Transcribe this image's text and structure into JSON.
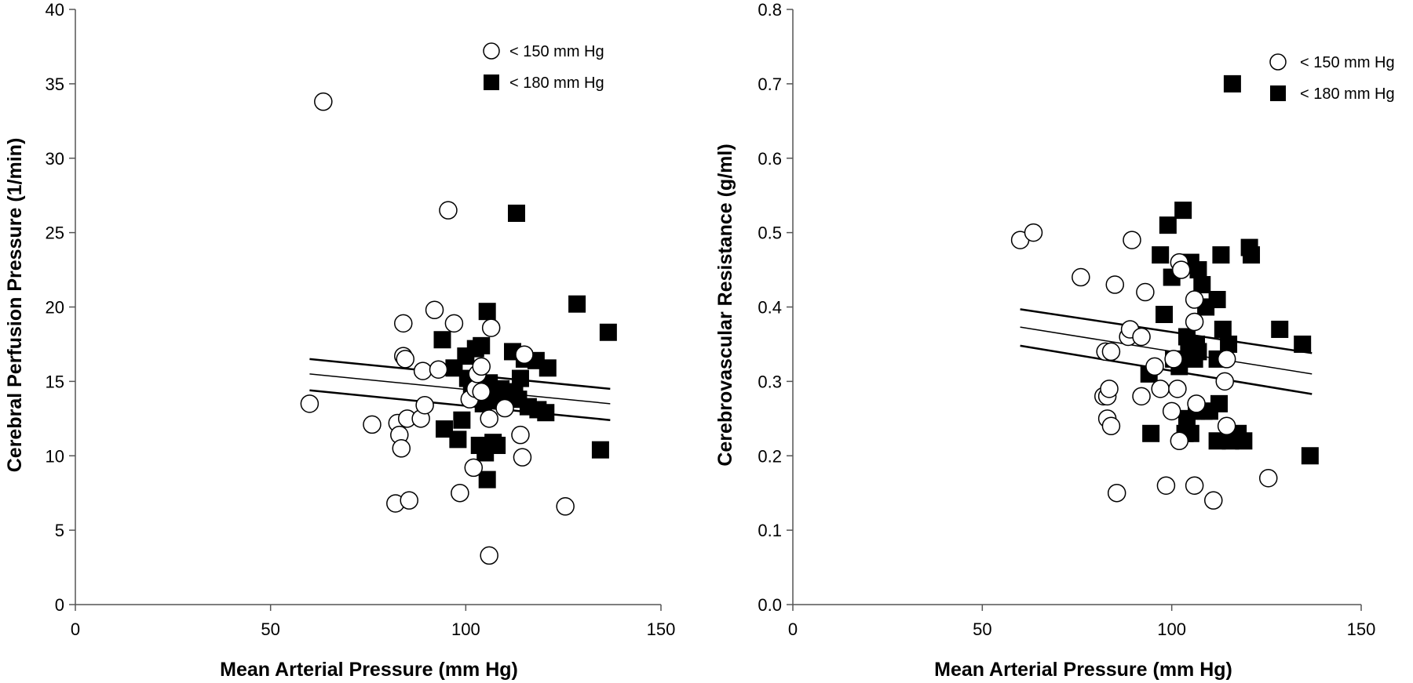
{
  "chart_data": [
    {
      "type": "scatter",
      "xlabel": "Mean Arterial Pressure (mm Hg)",
      "ylabel": "Cerebral Perfusion Pressure (1/min)",
      "xlim": [
        0,
        150
      ],
      "ylim": [
        0,
        40
      ],
      "xticks": [
        "0",
        "50",
        "100",
        "150"
      ],
      "yticks": [
        "0",
        "5",
        "10",
        "15",
        "20",
        "25",
        "30",
        "35",
        "40"
      ],
      "grid": false,
      "legend": "top-right",
      "series": [
        {
          "name": "< 150 mm Hg",
          "marker": "open-circle",
          "points": [
            [
              60,
              13.5
            ],
            [
              63.5,
              33.8
            ],
            [
              76,
              12.1
            ],
            [
              82,
              6.8
            ],
            [
              82.5,
              12.2
            ],
            [
              83,
              11.4
            ],
            [
              83.5,
              10.5
            ],
            [
              84,
              16.7
            ],
            [
              84,
              18.9
            ],
            [
              84.5,
              16.5
            ],
            [
              85,
              12.5
            ],
            [
              85.5,
              7
            ],
            [
              88.5,
              12.5
            ],
            [
              89,
              15.7
            ],
            [
              89.5,
              13.4
            ],
            [
              92,
              19.8
            ],
            [
              93,
              15.8
            ],
            [
              95.5,
              26.5
            ],
            [
              97,
              18.9
            ],
            [
              98.5,
              7.5
            ],
            [
              101,
              13.8
            ],
            [
              102,
              9.2
            ],
            [
              102.5,
              14.5
            ],
            [
              103,
              15.5
            ],
            [
              104,
              16
            ],
            [
              104,
              14.3
            ],
            [
              106,
              12.5
            ],
            [
              106,
              3.3
            ],
            [
              106.5,
              18.6
            ],
            [
              110,
              13.2
            ],
            [
              114,
              11.4
            ],
            [
              114.5,
              9.9
            ],
            [
              115,
              16.8
            ],
            [
              125.5,
              6.6
            ]
          ]
        },
        {
          "name": "< 180 mm Hg",
          "marker": "filled-square",
          "points": [
            [
              94,
              17.8
            ],
            [
              94.5,
              11.8
            ],
            [
              97,
              15.9
            ],
            [
              98,
              11.1
            ],
            [
              99,
              12.4
            ],
            [
              100,
              16.7
            ],
            [
              100.5,
              15.2
            ],
            [
              101.5,
              14.3
            ],
            [
              102.5,
              17.2
            ],
            [
              103,
              14.5
            ],
            [
              103.5,
              10.7
            ],
            [
              104,
              17.4
            ],
            [
              104.5,
              13.5
            ],
            [
              105,
              10.2
            ],
            [
              105.5,
              19.7
            ],
            [
              105.5,
              8.4
            ],
            [
              106,
              14.9
            ],
            [
              106.5,
              13.8
            ],
            [
              107,
              10.9
            ],
            [
              108,
              10.7
            ],
            [
              109,
              14.5
            ],
            [
              110,
              14.3
            ],
            [
              112,
              17
            ],
            [
              112.5,
              14.3
            ],
            [
              113,
              26.3
            ],
            [
              113.5,
              13.8
            ],
            [
              114,
              15.2
            ],
            [
              115,
              16.5
            ],
            [
              116,
              13.3
            ],
            [
              118,
              16.4
            ],
            [
              118.5,
              13.1
            ],
            [
              120.5,
              12.9
            ],
            [
              121,
              15.9
            ],
            [
              128.5,
              20.2
            ],
            [
              134.5,
              10.4
            ],
            [
              136.5,
              18.3
            ]
          ]
        }
      ],
      "fit_lines": [
        {
          "x": [
            60,
            137
          ],
          "y": [
            16.5,
            14.5
          ]
        },
        {
          "x": [
            60,
            137
          ],
          "y": [
            15.5,
            13.5
          ]
        },
        {
          "x": [
            60,
            137
          ],
          "y": [
            14.4,
            12.4
          ]
        }
      ]
    },
    {
      "type": "scatter",
      "xlabel": "Mean Arterial Pressure (mm Hg)",
      "ylabel": "Cerebrovascular Resistance (g/ml)",
      "xlim": [
        0,
        150
      ],
      "ylim": [
        0,
        0.8
      ],
      "xticks": [
        "0",
        "50",
        "100",
        "150"
      ],
      "yticks": [
        "0.0",
        "0.1",
        "0.2",
        "0.3",
        "0.4",
        "0.5",
        "0.6",
        "0.7",
        "0.8"
      ],
      "grid": false,
      "legend": "top-right",
      "series": [
        {
          "name": "< 150 mm Hg",
          "marker": "open-circle",
          "points": [
            [
              60,
              0.49
            ],
            [
              63.5,
              0.5
            ],
            [
              76,
              0.44
            ],
            [
              82,
              0.28
            ],
            [
              82.5,
              0.34
            ],
            [
              83,
              0.28
            ],
            [
              83,
              0.25
            ],
            [
              83.5,
              0.29
            ],
            [
              84,
              0.24
            ],
            [
              84,
              0.34
            ],
            [
              85,
              0.43
            ],
            [
              85.5,
              0.15
            ],
            [
              88.5,
              0.36
            ],
            [
              89,
              0.37
            ],
            [
              89.5,
              0.49
            ],
            [
              92,
              0.36
            ],
            [
              92,
              0.28
            ],
            [
              93,
              0.42
            ],
            [
              95.5,
              0.32
            ],
            [
              97,
              0.29
            ],
            [
              98.5,
              0.16
            ],
            [
              100,
              0.26
            ],
            [
              100.5,
              0.33
            ],
            [
              101.5,
              0.29
            ],
            [
              102,
              0.22
            ],
            [
              102,
              0.46
            ],
            [
              102.5,
              0.45
            ],
            [
              106,
              0.38
            ],
            [
              106,
              0.41
            ],
            [
              106,
              0.16
            ],
            [
              106.5,
              0.27
            ],
            [
              111,
              0.14
            ],
            [
              114,
              0.3
            ],
            [
              114.5,
              0.33
            ],
            [
              114.5,
              0.24
            ],
            [
              125.5,
              0.17
            ]
          ]
        },
        {
          "name": "< 180 mm Hg",
          "marker": "filled-square",
          "points": [
            [
              94,
              0.31
            ],
            [
              94.5,
              0.23
            ],
            [
              97,
              0.47
            ],
            [
              98,
              0.39
            ],
            [
              99,
              0.51
            ],
            [
              100,
              0.44
            ],
            [
              100.5,
              0.33
            ],
            [
              102,
              0.32
            ],
            [
              102,
              0.33
            ],
            [
              103,
              0.53
            ],
            [
              103.5,
              0.23
            ],
            [
              104,
              0.36
            ],
            [
              104,
              0.25
            ],
            [
              104.5,
              0.34
            ],
            [
              105,
              0.23
            ],
            [
              105,
              0.46
            ],
            [
              106,
              0.33
            ],
            [
              106.5,
              0.35
            ],
            [
              106.5,
              0.26
            ],
            [
              107,
              0.34
            ],
            [
              107,
              0.45
            ],
            [
              108,
              0.43
            ],
            [
              108.5,
              0.26
            ],
            [
              109,
              0.4
            ],
            [
              110,
              0.26
            ],
            [
              112,
              0.41
            ],
            [
              112,
              0.33
            ],
            [
              112,
              0.22
            ],
            [
              112.5,
              0.27
            ],
            [
              113,
              0.47
            ],
            [
              113.5,
              0.37
            ],
            [
              115,
              0.35
            ],
            [
              115.5,
              0.22
            ],
            [
              116,
              0.7
            ],
            [
              117.5,
              0.23
            ],
            [
              119,
              0.22
            ],
            [
              120.5,
              0.48
            ],
            [
              121,
              0.47
            ],
            [
              128.5,
              0.37
            ],
            [
              134.5,
              0.35
            ],
            [
              136.5,
              0.2
            ]
          ]
        }
      ],
      "fit_lines": [
        {
          "x": [
            60,
            137
          ],
          "y": [
            0.397,
            0.338
          ]
        },
        {
          "x": [
            60,
            137
          ],
          "y": [
            0.373,
            0.31
          ]
        },
        {
          "x": [
            60,
            137
          ],
          "y": [
            0.348,
            0.283
          ]
        }
      ]
    }
  ]
}
